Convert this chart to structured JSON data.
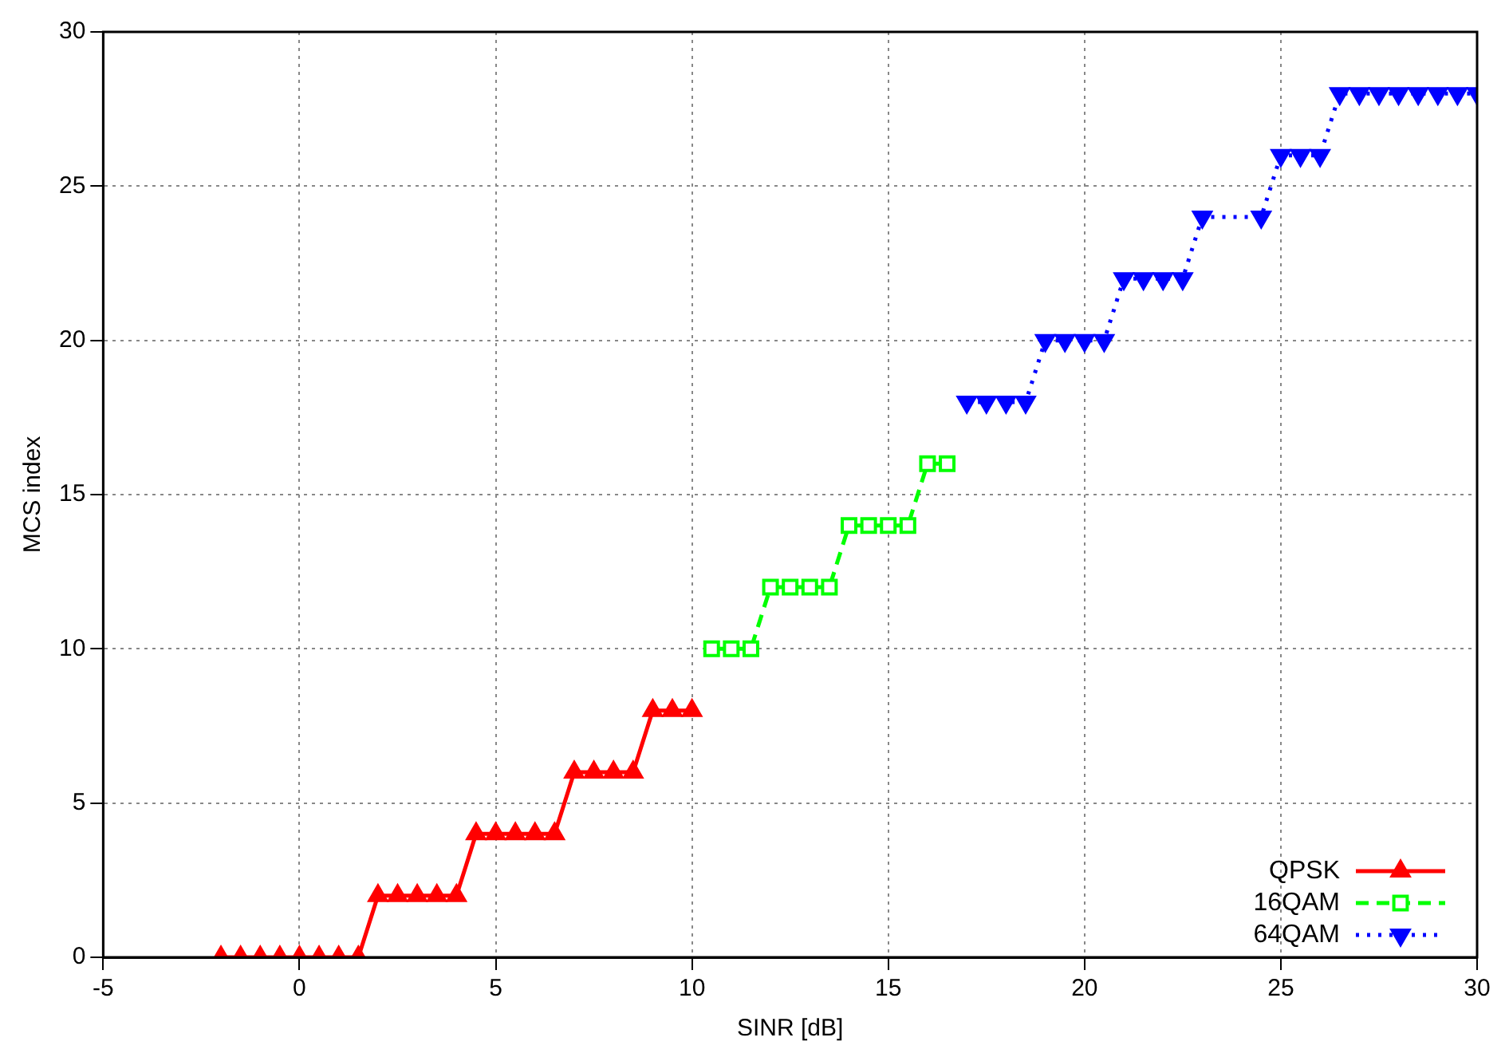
{
  "chart_data": {
    "type": "line",
    "xlabel": "SINR [dB]",
    "ylabel": "MCS index",
    "xlim": [
      -5,
      30
    ],
    "xticks": [
      -5,
      0,
      5,
      10,
      15,
      20,
      25,
      30
    ],
    "ylim": [
      0,
      30
    ],
    "yticks": [
      0,
      5,
      10,
      15,
      20,
      25,
      30
    ],
    "grid": true,
    "legend": "bottom right",
    "series": [
      {
        "name": "QPSK",
        "color": "#ff0000",
        "marker": "triangle",
        "line_style": "solid",
        "x": [
          -2,
          -1.5,
          -1,
          -0.5,
          0,
          0.5,
          1,
          1.5,
          2,
          2.5,
          3,
          3.5,
          4,
          4.5,
          5,
          5.5,
          6,
          6.5,
          7,
          7.5,
          8,
          8.5,
          9,
          9.5,
          10
        ],
        "values": [
          0,
          0,
          0,
          0,
          0,
          0,
          0,
          0,
          2,
          2,
          2,
          2,
          2,
          4,
          4,
          4,
          4,
          4,
          6,
          6,
          6,
          6,
          8,
          8,
          8
        ]
      },
      {
        "name": "16QAM",
        "color": "#00ff00",
        "marker": "square",
        "line_style": "dashed",
        "x": [
          10.5,
          11,
          11.5,
          12,
          12.5,
          13,
          13.5,
          14,
          14.5,
          15,
          15.5,
          16,
          16.5
        ],
        "values": [
          10,
          10,
          10,
          12,
          12,
          12,
          12,
          14,
          14,
          14,
          14,
          16,
          16
        ]
      },
      {
        "name": "64QAM",
        "color": "#0000ff",
        "marker": "triangle_down",
        "line_style": "dotted",
        "x": [
          17,
          17.5,
          18,
          18.5,
          19,
          19.5,
          20,
          20.5,
          21,
          21.5,
          22,
          22.5,
          23,
          24.5,
          25,
          25.5,
          26,
          26.5,
          27,
          27.5,
          28,
          28.5,
          29,
          29.5,
          30
        ],
        "values": [
          18,
          18,
          18,
          18,
          20,
          20,
          20,
          20,
          22,
          22,
          22,
          22,
          24,
          24,
          26,
          26,
          26,
          28,
          28,
          28,
          28,
          28,
          28,
          28,
          28
        ]
      }
    ]
  }
}
